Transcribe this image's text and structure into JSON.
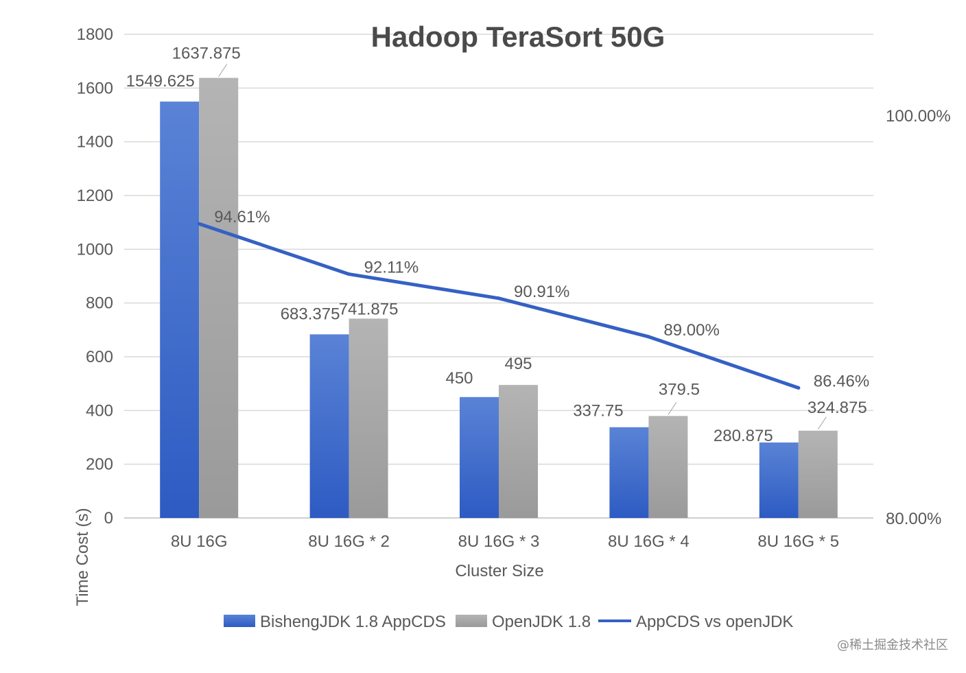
{
  "watermark": "@稀土掘金技术社区",
  "chart_data": {
    "type": "bar",
    "title": "Hadoop TeraSort 50G",
    "xlabel": "Cluster Size",
    "ylabel": "Time Cost (s)",
    "categories": [
      "8U 16G",
      "8U 16G * 2",
      "8U 16G * 3",
      "8U 16G * 4",
      "8U 16G * 5"
    ],
    "ylim": [
      0,
      1800
    ],
    "yticks": [
      0,
      200,
      400,
      600,
      800,
      1000,
      1200,
      1400,
      1600,
      1800
    ],
    "y2lim": [
      0.8,
      1.0
    ],
    "y2ticks": [
      "80.00%",
      "100.00%"
    ],
    "grid": true,
    "legend_position": "bottom",
    "colors": {
      "bisheng": "#3a68c8",
      "openjdk": "#a8a8a8",
      "ratio": "#3561c4",
      "grid": "#d9d9d9",
      "text": "#595959"
    },
    "series": [
      {
        "name": "BishengJDK 1.8 AppCDS",
        "kind": "bar",
        "axis": "left",
        "values": [
          1549.625,
          683.375,
          450,
          337.75,
          280.875
        ],
        "labels": [
          "1549.625",
          "683.375",
          "450",
          "337.75",
          "280.875"
        ]
      },
      {
        "name": "OpenJDK 1.8",
        "kind": "bar",
        "axis": "left",
        "values": [
          1637.875,
          741.875,
          495,
          379.5,
          324.875
        ],
        "labels": [
          "1637.875",
          "741.875",
          "495",
          "379.5",
          "324.875"
        ]
      },
      {
        "name": "AppCDS vs openJDK",
        "kind": "line",
        "axis": "right",
        "values": [
          0.9461,
          0.9211,
          0.9091,
          0.89,
          0.8646
        ],
        "labels": [
          "94.61%",
          "92.11%",
          "90.91%",
          "89.00%",
          "86.46%"
        ]
      }
    ]
  }
}
